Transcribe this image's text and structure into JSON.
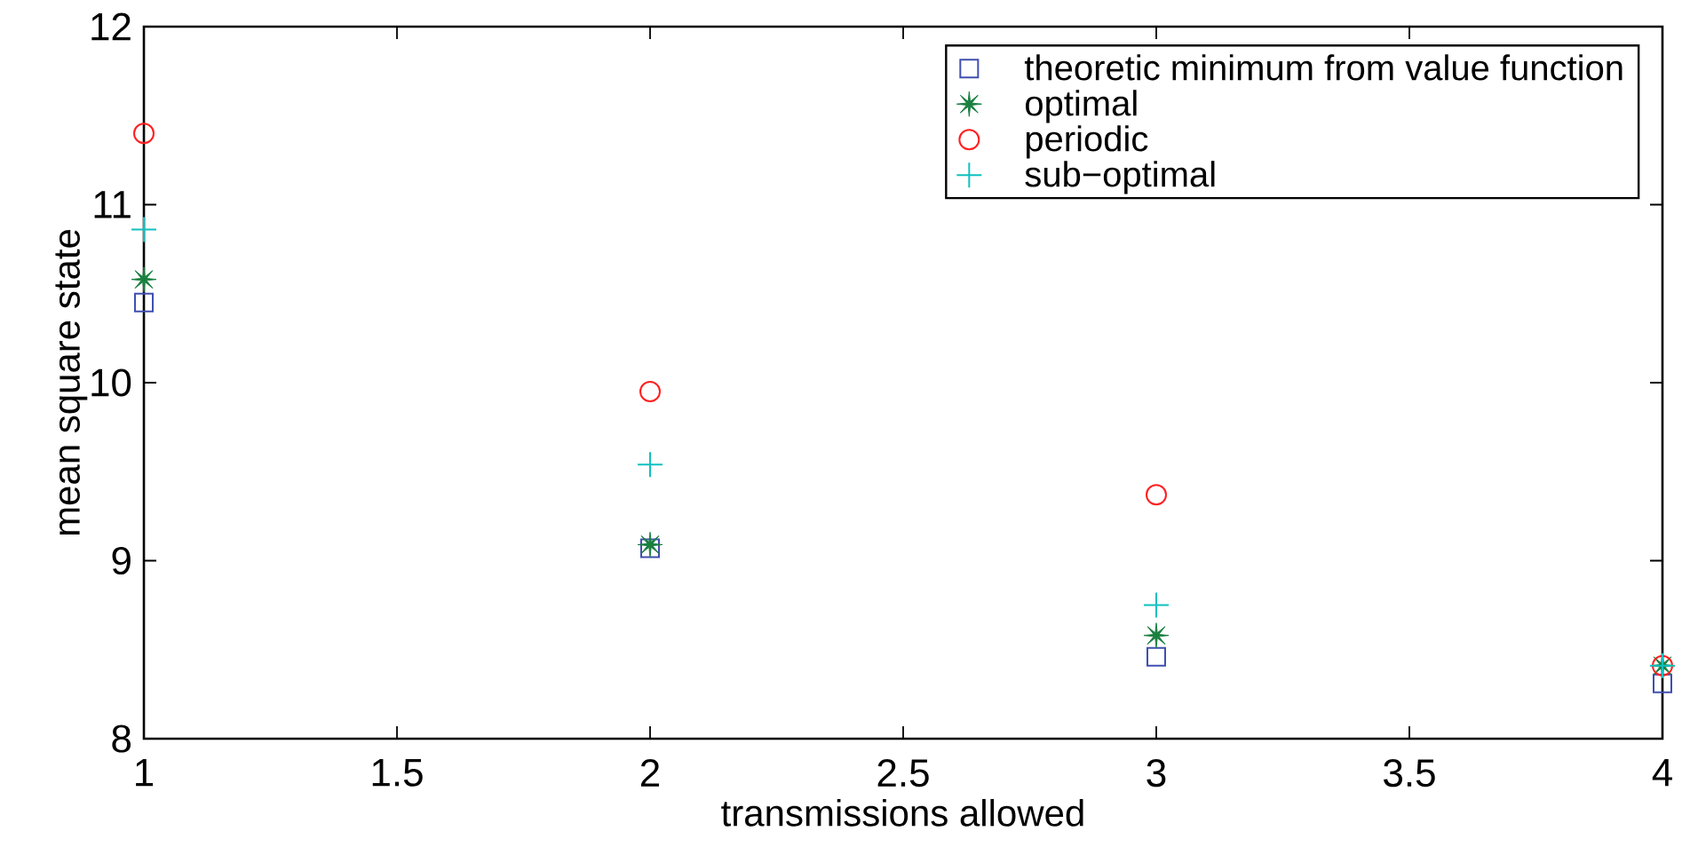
{
  "chart_data": {
    "type": "scatter",
    "xlabel": "transmissions allowed",
    "ylabel": "mean square state",
    "x": [
      1,
      2,
      3,
      4
    ],
    "xlim": [
      1,
      4
    ],
    "xticks": [
      1,
      1.5,
      2,
      2.5,
      3,
      3.5,
      4
    ],
    "ylim": [
      8,
      12
    ],
    "yticks": [
      8,
      9,
      10,
      11,
      12
    ],
    "grid": false,
    "legend": "top right",
    "series": [
      {
        "name": "theoretic  minimum from value function",
        "color": "#3f4fb0",
        "marker": "square",
        "values": [
          10.45,
          9.07,
          8.46,
          8.31
        ]
      },
      {
        "name": "optimal",
        "color": "#1a8040",
        "marker": "star",
        "values": [
          10.58,
          9.09,
          8.58,
          8.41
        ]
      },
      {
        "name": "periodic",
        "color": "#ff2020",
        "marker": "circle",
        "values": [
          11.4,
          9.95,
          9.37,
          8.41
        ]
      },
      {
        "name": "sub−optimal",
        "color": "#10c0c0",
        "marker": "cross",
        "values": [
          10.86,
          9.54,
          8.75,
          8.41
        ]
      }
    ]
  }
}
